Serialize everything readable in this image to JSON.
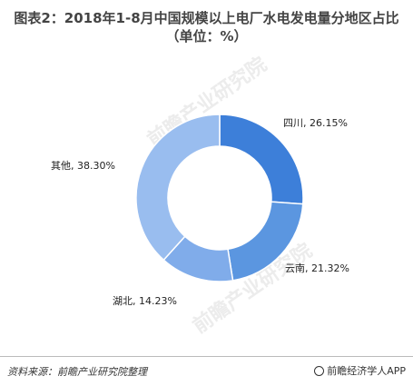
{
  "header": {
    "title_line1": "图表2：2018年1-8月中国规模以上电厂水电发电量分地区占比",
    "title_line2": "（单位：%）"
  },
  "chart_data": {
    "type": "pie",
    "style": "donut",
    "title": "图表2：2018年1-8月中国规模以上电厂水电发电量分地区占比（单位：%）",
    "slices": [
      {
        "name": "四川",
        "value": 26.15,
        "label": "四川, 26.15%",
        "color": "#3d7fd9"
      },
      {
        "name": "云南",
        "value": 21.32,
        "label": "云南, 21.32%",
        "color": "#5b96e0"
      },
      {
        "name": "湖北",
        "value": 14.23,
        "label": "湖北, 14.23%",
        "color": "#80acea"
      },
      {
        "name": "其他",
        "value": 38.3,
        "label": "其他, 38.30%",
        "color": "#99bdef"
      }
    ]
  },
  "watermark": {
    "text": "前瞻产业研究院"
  },
  "footer": {
    "source": "资料来源：前瞻产业研究院整理",
    "brand": "前瞻经济学人APP"
  }
}
